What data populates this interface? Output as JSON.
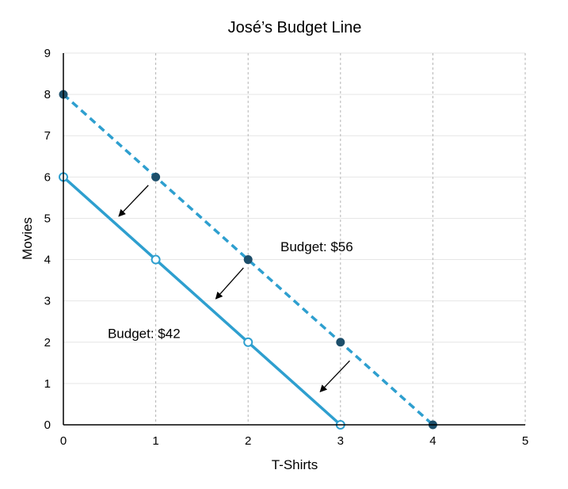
{
  "chart_data": {
    "type": "line",
    "title": "José’s Budget Line",
    "xlabel": "T-Shirts",
    "ylabel": "Movies",
    "xlim": [
      0,
      5
    ],
    "ylim": [
      0,
      9
    ],
    "xticks": [
      "0",
      "1",
      "2",
      "3",
      "4",
      "5"
    ],
    "yticks": [
      "0",
      "1",
      "2",
      "3",
      "4",
      "5",
      "6",
      "7",
      "8",
      "9"
    ],
    "grid": true,
    "series": [
      {
        "label": "Budget: $56",
        "style": "dashed",
        "marker": "filled",
        "color": "#2e9fcf",
        "marker_color": "#1d4f6b",
        "points": [
          [
            0,
            8
          ],
          [
            1,
            6
          ],
          [
            2,
            4
          ],
          [
            3,
            2
          ],
          [
            4,
            0
          ]
        ]
      },
      {
        "label": "Budget: $42",
        "style": "solid",
        "marker": "hollow",
        "color": "#2e9fcf",
        "marker_color": "#2e9fcf",
        "points": [
          [
            0,
            6
          ],
          [
            1,
            4
          ],
          [
            2,
            2
          ],
          [
            3,
            0
          ]
        ]
      }
    ],
    "annotations": [
      {
        "text": "Budget: $56",
        "x": 2.35,
        "y": 4.2
      },
      {
        "text": "Budget: $42",
        "x": 0.48,
        "y": 2.1
      }
    ],
    "arrows": [
      {
        "from": [
          0.92,
          5.8
        ],
        "to": [
          0.6,
          5.05
        ]
      },
      {
        "from": [
          1.95,
          3.8
        ],
        "to": [
          1.65,
          3.05
        ]
      },
      {
        "from": [
          3.1,
          1.55
        ],
        "to": [
          2.78,
          0.8
        ]
      }
    ]
  }
}
